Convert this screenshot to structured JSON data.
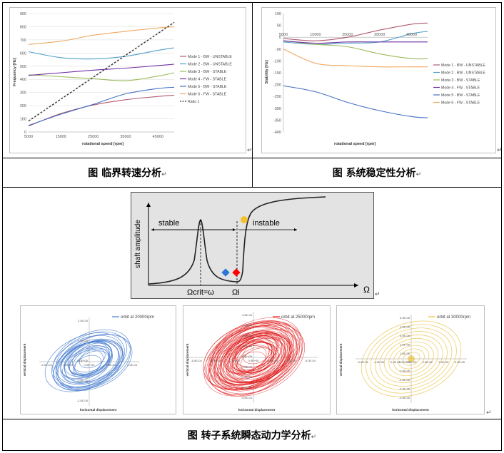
{
  "captions": {
    "frequency": "图  临界转速分析",
    "stability": "图  系统稳定性分析",
    "transient": "图  转子系统瞬态动力学分析"
  },
  "colors": {
    "mode1": "#b05a6e",
    "mode2": "#4f9fc9",
    "mode3": "#9bbb59",
    "mode4": "#7030a0",
    "mode5": "#4472c4",
    "mode6": "#f0a860",
    "ratio": "#333333"
  },
  "chart_data": [
    {
      "type": "line",
      "title": "",
      "xlabel": "rotational speed [rpm]",
      "ylabel": "Frequency [Hz]",
      "xlim": [
        5000,
        50000
      ],
      "ylim": [
        0,
        900
      ],
      "xticks": [
        "5000",
        "15000",
        "25000",
        "35000",
        "45000"
      ],
      "yticks": [
        "0",
        "100",
        "200",
        "300",
        "400",
        "500",
        "600",
        "700",
        "800",
        "900"
      ],
      "x": [
        5000,
        15000,
        25000,
        35000,
        45000,
        50000
      ],
      "series": [
        {
          "name": "Mode 1 - BW - UNSTABLE",
          "values": [
            45,
            140,
            205,
            245,
            270,
            280
          ]
        },
        {
          "name": "Mode 2 - BW - UNSTABLE",
          "values": [
            610,
            565,
            555,
            575,
            620,
            640
          ]
        },
        {
          "name": "Mode 3 - BW - STABLE",
          "values": [
            435,
            420,
            405,
            390,
            425,
            450
          ]
        },
        {
          "name": "Mode 4 - FW - STABLE",
          "values": [
            430,
            450,
            470,
            485,
            505,
            515
          ]
        },
        {
          "name": "Mode 5 - BW - STABLE",
          "values": [
            50,
            135,
            210,
            290,
            330,
            340
          ]
        },
        {
          "name": "Mode 6 - FW - STABLE",
          "values": [
            665,
            690,
            735,
            765,
            790,
            800
          ]
        },
        {
          "name": "Ratio 1",
          "values": [
            83,
            250,
            417,
            583,
            750,
            833
          ]
        }
      ],
      "legend": "right",
      "grid": true
    },
    {
      "type": "line",
      "title": "",
      "xlabel": "rotational speed [rpm]",
      "ylabel": "Stability [Hz]",
      "xlim": [
        5000,
        50000
      ],
      "ylim": [
        -400,
        100
      ],
      "xticks": [
        "5000",
        "15000",
        "25000",
        "35000",
        "45000"
      ],
      "yticks": [
        "100",
        "50",
        "0",
        "-50",
        "-100",
        "-150",
        "-200",
        "-250",
        "-300",
        "-350",
        "-400"
      ],
      "x": [
        5000,
        15000,
        25000,
        35000,
        45000,
        50000
      ],
      "series": [
        {
          "name": "Mode 1 - BW - UNSTABLE",
          "values": [
            -5,
            -15,
            0,
            30,
            55,
            60
          ]
        },
        {
          "name": "Mode 2 - BW - UNSTABLE",
          "values": [
            -20,
            -30,
            -25,
            -20,
            15,
            25
          ]
        },
        {
          "name": "Mode 3 - BW - STABLE",
          "values": [
            -15,
            -30,
            -40,
            -70,
            -90,
            -90
          ]
        },
        {
          "name": "Mode 4 - FW - STABLE",
          "values": [
            -15,
            -25,
            -20,
            -20,
            -20,
            -20
          ]
        },
        {
          "name": "Mode 5 - BW - STABLE",
          "values": [
            -205,
            -230,
            -275,
            -310,
            -335,
            -340
          ]
        },
        {
          "name": "Mode 6 - FW - STABLE",
          "values": [
            -50,
            -110,
            -120,
            -125,
            -125,
            -125
          ]
        }
      ],
      "legend": "right",
      "grid": false
    },
    {
      "type": "line",
      "title": "",
      "xlabel": "Ω",
      "ylabel": "shaft amplitude",
      "annotations": {
        "stable": "stable",
        "instable": "instable",
        "omega_crit": "Ωcrit=ω",
        "omega_i": "Ωi"
      },
      "legend": "none"
    },
    {
      "type": "line",
      "title": "",
      "xlabel": "horizontal displacement",
      "ylabel": "vertical displacement",
      "legend_label": "orbit at 20000rpm",
      "xticks": [
        "-2.0E-04",
        "-1.0E-04",
        "0.0E+00",
        "1.0E-04",
        "2.0E-04"
      ],
      "yticks": [
        "2.0E-04",
        "1.0E-04",
        "0.0E+00",
        "-1.0E-04",
        "-2.0E-04"
      ]
    },
    {
      "type": "line",
      "title": "",
      "xlabel": "horizontal displacement",
      "ylabel": "vertical displacement",
      "legend_label": "orbit at 25000rpm",
      "xticks": [
        "-6.0E-04",
        "-4.0E-04",
        "-2.0E-04",
        "0.0E+00",
        "2.0E-04",
        "4.0E-04",
        "6.0E-04"
      ],
      "yticks": [
        "4.0E-04",
        "3.0E-04",
        "2.0E-04",
        "1.0E-04",
        "0.0E+00",
        "-1.0E-04",
        "-2.0E-04",
        "-3.0E-04",
        "-4.0E-04"
      ]
    },
    {
      "type": "line",
      "title": "",
      "xlabel": "horizontal displacement",
      "ylabel": "vertical displacement",
      "legend_label": "orbit at 30000rpm",
      "xticks": [
        "-6.0E-05",
        "-4.0E-05",
        "-2.0E-05",
        "0.0E+00",
        "2.0E-05",
        "4.0E-05",
        "6.0E-05"
      ],
      "yticks": [
        "5.0E-05",
        "4.0E-05",
        "3.0E-05",
        "2.0E-05",
        "1.0E-05",
        "0.0E+00",
        "-1.0E-05",
        "-2.0E-05",
        "-3.0E-05",
        "-4.0E-05"
      ]
    }
  ]
}
